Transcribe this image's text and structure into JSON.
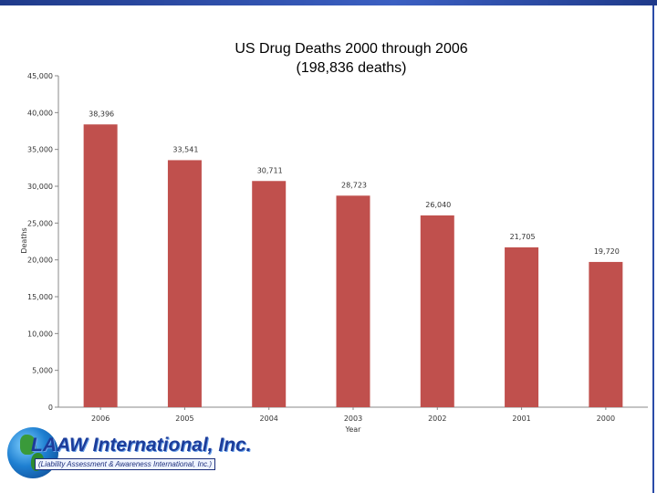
{
  "chart_data": {
    "type": "bar",
    "title_lines": [
      "US Drug Deaths 2000 through 2006",
      "(198,836 deaths)"
    ],
    "xlabel": "Year",
    "ylabel": "Deaths",
    "categories": [
      "2006",
      "2005",
      "2004",
      "2003",
      "2002",
      "2001",
      "2000"
    ],
    "values": [
      38396,
      33541,
      30711,
      28723,
      26040,
      21705,
      19720
    ],
    "value_labels": [
      "38,396",
      "33,541",
      "30,711",
      "28,723",
      "26,040",
      "21,705",
      "19,720"
    ],
    "ylim": [
      0,
      45000
    ],
    "yticks": [
      0,
      5000,
      10000,
      15000,
      20000,
      25000,
      30000,
      35000,
      40000,
      45000
    ],
    "ytick_labels": [
      "0",
      "5,000",
      "10,000",
      "15,000",
      "20,000",
      "25,000",
      "30,000",
      "35,000",
      "40,000",
      "45,000"
    ],
    "grid": false,
    "legend": "none",
    "bar_color": "#c0504d"
  },
  "logo": {
    "name": "LAAW International, Inc.",
    "tagline": "(Liability Assessment & Awareness International, Inc.)"
  },
  "colors": {
    "top_bar": "#1f3a8a",
    "bar": "#c0504d"
  }
}
